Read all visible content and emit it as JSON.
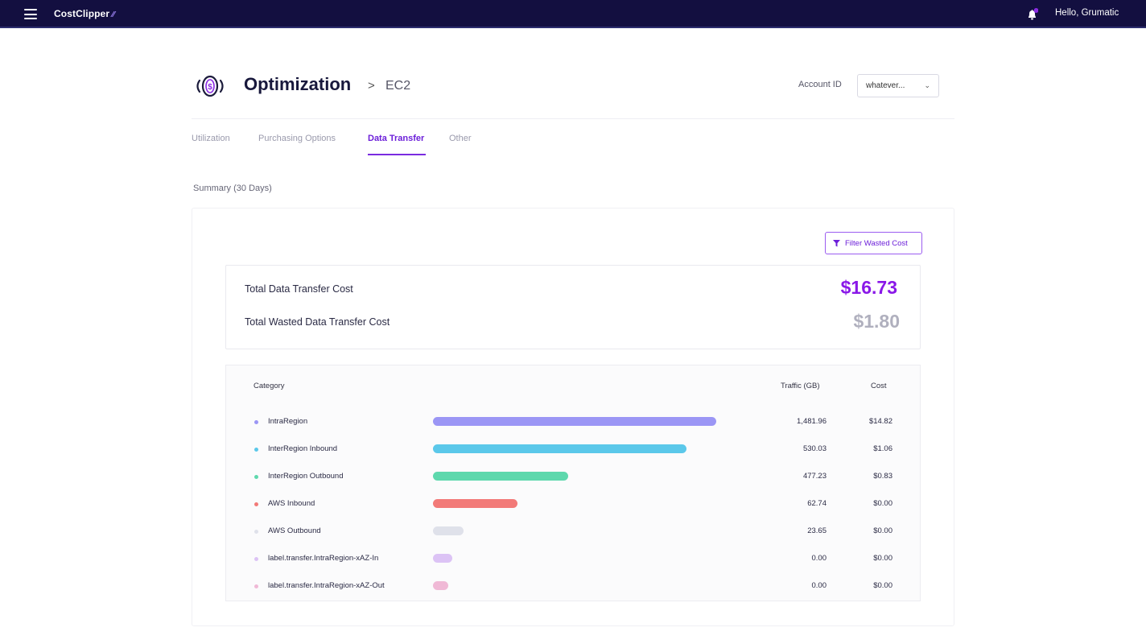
{
  "topbar": {
    "brand": "CostClipper",
    "brand_mark": "⁄⁄",
    "greeting": "Hello, Grumatic"
  },
  "header": {
    "title": "Optimization",
    "breadcrumb_sep": ">",
    "breadcrumb": "EC2",
    "account_label": "Account ID",
    "account_value": "whatever..."
  },
  "tabs": [
    {
      "label": "Utilization"
    },
    {
      "label": "Purchasing Options"
    },
    {
      "label": "Data Transfer"
    },
    {
      "label": "Other"
    }
  ],
  "summary_label": "Summary (30 Days)",
  "filter_button": "Filter Wasted Cost",
  "totals": {
    "total_label": "Total Data Transfer Cost",
    "total_value": "$16.73",
    "wasted_label": "Total Wasted Data Transfer Cost",
    "wasted_value": "$1.80"
  },
  "table": {
    "headers": {
      "category": "Category",
      "traffic": "Traffic (GB)",
      "cost": "Cost"
    },
    "rows": [
      {
        "category": "IntraRegion",
        "traffic": "1,481.96",
        "cost": "$14.82",
        "color": "#9b96f5",
        "fraction": 1.0
      },
      {
        "category": "InterRegion Inbound",
        "traffic": "530.03",
        "cost": "$1.06",
        "color": "#5bc8ea",
        "fraction": 0.896
      },
      {
        "category": "InterRegion Outbound",
        "traffic": "477.23",
        "cost": "$0.83",
        "color": "#5ed8ad",
        "fraction": 0.478
      },
      {
        "category": "AWS Inbound",
        "traffic": "62.74",
        "cost": "$0.00",
        "color": "#f27a78",
        "fraction": 0.298
      },
      {
        "category": "AWS Outbound",
        "traffic": "23.65",
        "cost": "$0.00",
        "color": "#dfe1ea",
        "fraction": 0.108
      },
      {
        "category": "label.transfer.IntraRegion-xAZ-In",
        "traffic": "0.00",
        "cost": "$0.00",
        "color": "#dcc3f5",
        "fraction": 0.068
      },
      {
        "category": "label.transfer.IntraRegion-xAZ-Out",
        "traffic": "0.00",
        "cost": "$0.00",
        "color": "#f0b9d6",
        "fraction": 0.054
      }
    ]
  }
}
